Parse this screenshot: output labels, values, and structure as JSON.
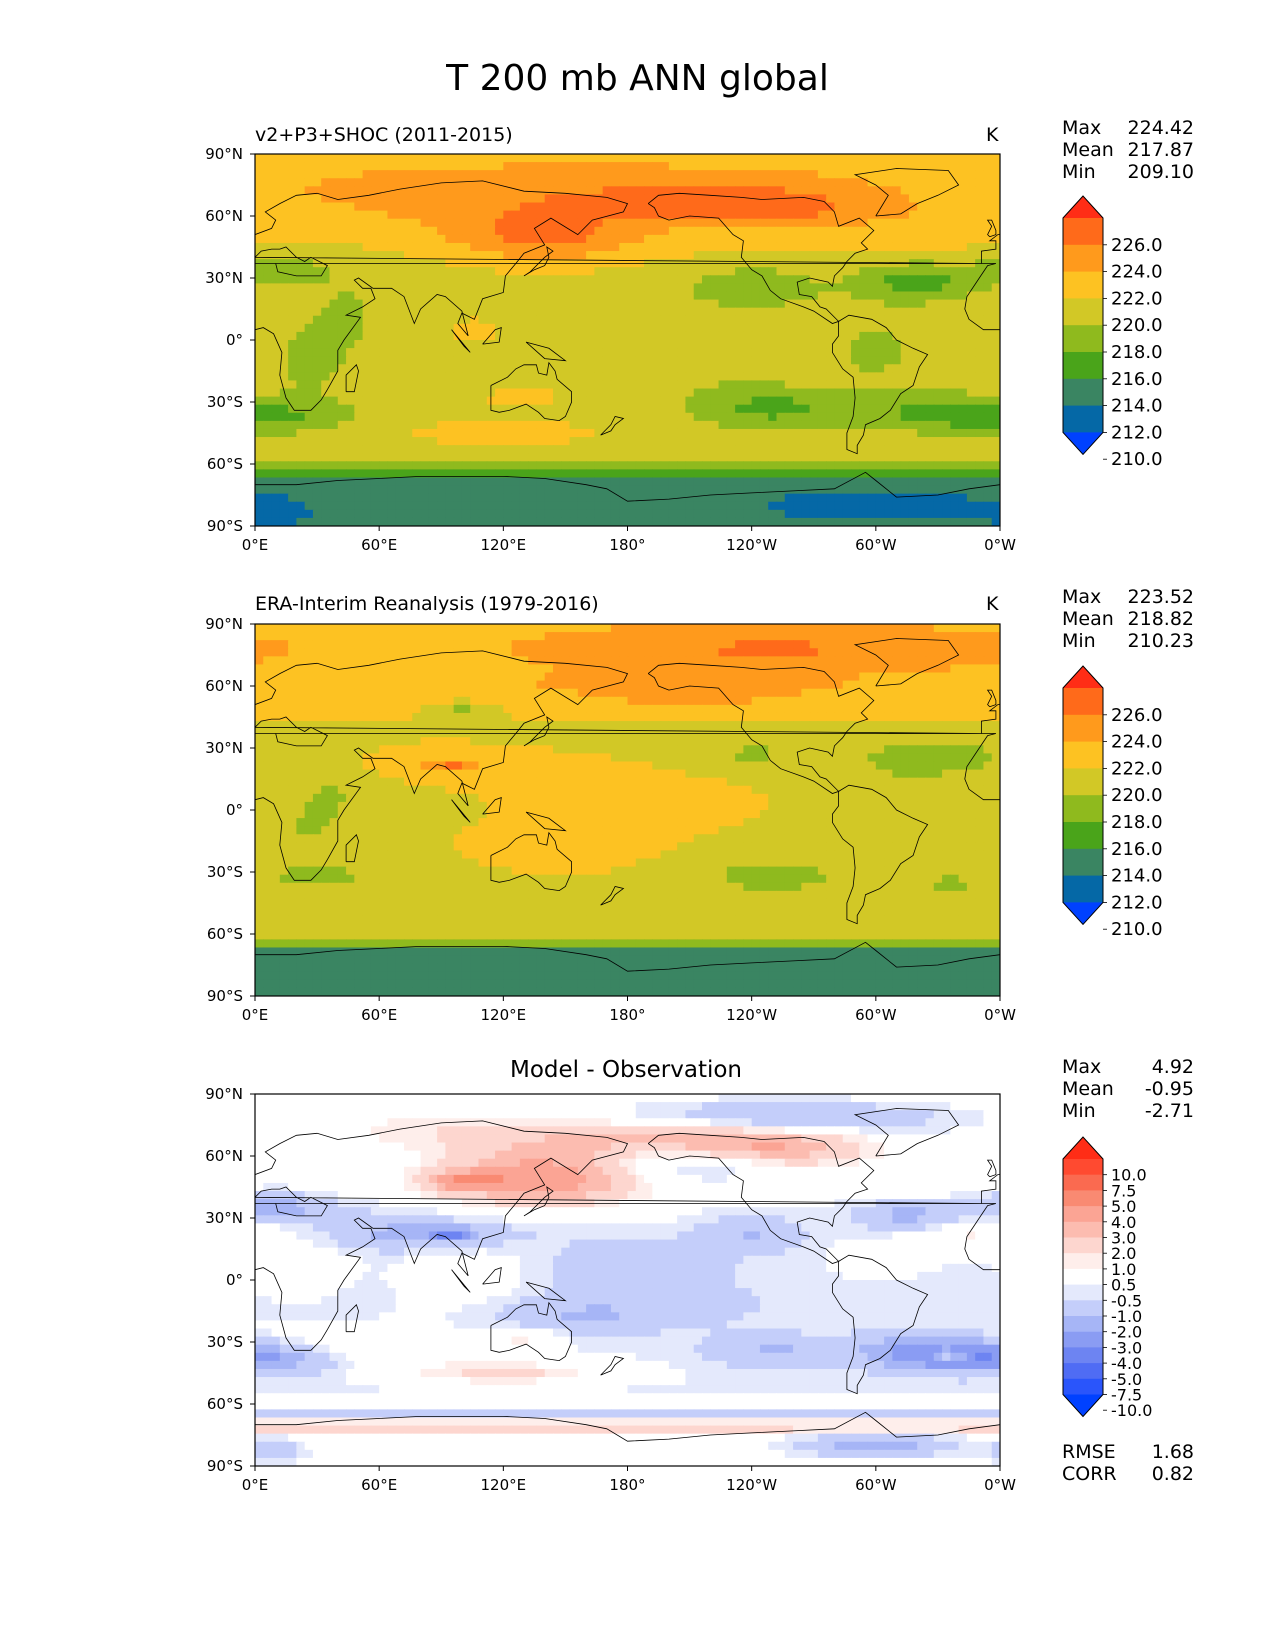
{
  "figure_title": "T 200 mb ANN global",
  "chart_data": [
    {
      "type": "heatmap",
      "title": "v2+P3+SHOC (2011-2015)",
      "units": "K",
      "x_ticks": [
        "0°E",
        "60°E",
        "120°E",
        "180°",
        "120°W",
        "60°W",
        "0°W"
      ],
      "y_ticks": [
        "90°N",
        "60°N",
        "30°N",
        "0°",
        "30°S",
        "60°S",
        "90°S"
      ],
      "stats": [
        {
          "label": "Max",
          "value": "224.42"
        },
        {
          "label": "Mean",
          "value": "217.87"
        },
        {
          "label": "Min",
          "value": "209.10"
        }
      ],
      "colorbar": {
        "levels": [
          "226.0",
          "224.0",
          "222.0",
          "220.0",
          "218.0",
          "216.0",
          "214.0",
          "212.0",
          "210.0"
        ],
        "colors": [
          "#ff2d16",
          "#ff6a1a",
          "#ff9a1c",
          "#fdc222",
          "#d2c826",
          "#8fba1e",
          "#4aa41a",
          "#3a8562",
          "#0568a6",
          "#0041ff"
        ]
      }
    },
    {
      "type": "heatmap",
      "title": "ERA-Interim Reanalysis (1979-2016)",
      "units": "K",
      "x_ticks": [
        "0°E",
        "60°E",
        "120°E",
        "180°",
        "120°W",
        "60°W",
        "0°W"
      ],
      "y_ticks": [
        "90°N",
        "60°N",
        "30°N",
        "0°",
        "30°S",
        "60°S",
        "90°S"
      ],
      "stats": [
        {
          "label": "Max",
          "value": "223.52"
        },
        {
          "label": "Mean",
          "value": "218.82"
        },
        {
          "label": "Min",
          "value": "210.23"
        }
      ],
      "colorbar": {
        "levels": [
          "226.0",
          "224.0",
          "222.0",
          "220.0",
          "218.0",
          "216.0",
          "214.0",
          "212.0",
          "210.0"
        ],
        "colors": [
          "#ff2d16",
          "#ff6a1a",
          "#ff9a1c",
          "#fdc222",
          "#d2c826",
          "#8fba1e",
          "#4aa41a",
          "#3a8562",
          "#0568a6",
          "#0041ff"
        ]
      }
    },
    {
      "type": "heatmap",
      "title": "Model - Observation",
      "x_ticks": [
        "0°E",
        "60°E",
        "120°E",
        "180°",
        "120°W",
        "60°W",
        "0°W"
      ],
      "y_ticks": [
        "90°N",
        "60°N",
        "30°N",
        "0°",
        "30°S",
        "60°S",
        "90°S"
      ],
      "stats": [
        {
          "label": "Max",
          "value": "4.92"
        },
        {
          "label": "Mean",
          "value": "-0.95"
        },
        {
          "label": "Min",
          "value": "-2.71"
        }
      ],
      "metrics": [
        {
          "label": "RMSE",
          "value": "1.68"
        },
        {
          "label": "CORR",
          "value": "0.82"
        }
      ],
      "colorbar": {
        "levels": [
          "10.0",
          "7.5",
          "5.0",
          "4.0",
          "3.0",
          "2.0",
          "1.0",
          "0.5",
          "-0.5",
          "-1.0",
          "-2.0",
          "-3.0",
          "-4.0",
          "-5.0",
          "-7.5",
          "-10.0"
        ],
        "colors": [
          "#ff2d16",
          "#ff4a30",
          "#fa6a50",
          "#f98a72",
          "#fba494",
          "#fcbcb0",
          "#fdd6cf",
          "#feeeeb",
          "#ffffff",
          "#e4e9fc",
          "#c4cefa",
          "#a6b5f6",
          "#8a9cf3",
          "#6d84f2",
          "#4f6cf4",
          "#2a55fb",
          "#0041ff"
        ]
      }
    }
  ]
}
